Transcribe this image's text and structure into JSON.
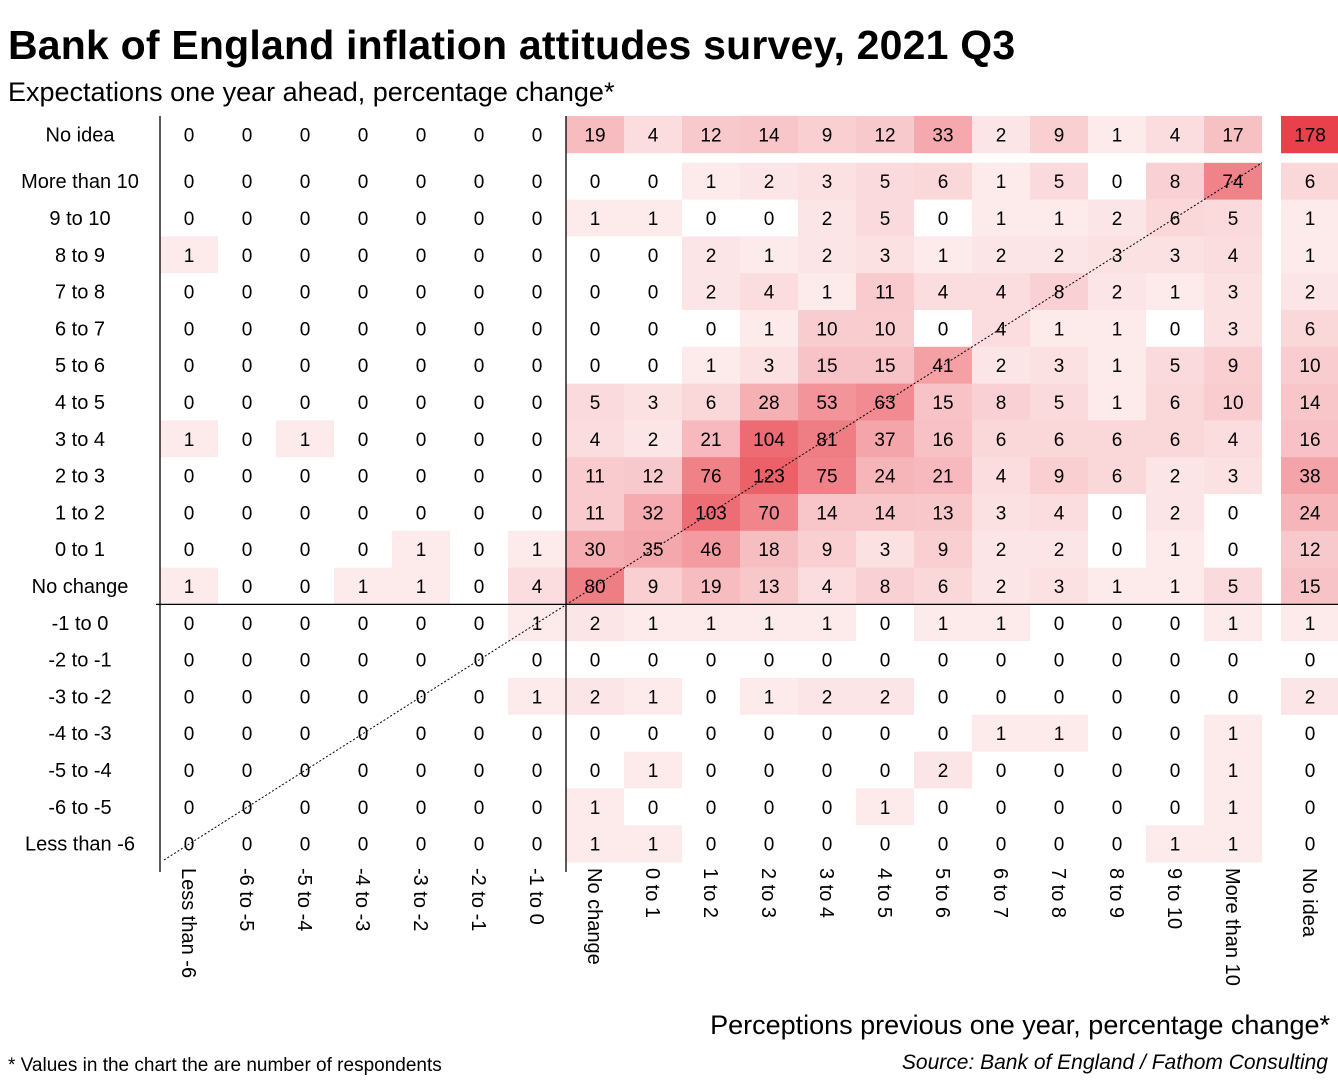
{
  "chart_data": {
    "type": "heatmap",
    "title": "Bank of England inflation attitudes survey, 2021 Q3",
    "subtitle": "Expectations one year ahead, percentage change*",
    "xlabel": "Perceptions previous one year, percentage change*",
    "footnote": "* Values in the chart the are number of respondents",
    "source": "Source: Bank of England / Fathom Consulting",
    "colors": {
      "high": "#e8414b",
      "low": "#ffffff"
    },
    "x_categories": [
      "Less than -6",
      "-6 to -5",
      "-5 to -4",
      "-4 to -3",
      "-3 to -2",
      "-2 to -1",
      "-1 to 0",
      "No change",
      "0 to 1",
      "1 to 2",
      "2 to 3",
      "3 to 4",
      "4 to 5",
      "5 to 6",
      "6 to 7",
      "7 to 8",
      "8 to 9",
      "9 to 10",
      "More than 10",
      "No idea"
    ],
    "y_categories": [
      "No idea",
      "More than 10",
      "9 to 10",
      "8 to 9",
      "7 to 8",
      "6 to 7",
      "5 to 6",
      "4 to 5",
      "3 to 4",
      "2 to 3",
      "1 to 2",
      "0 to 1",
      "No change",
      "-1 to 0",
      "-2 to -1",
      "-3 to -2",
      "-4 to -3",
      "-5 to -4",
      "-6 to -5",
      "Less than -6"
    ],
    "values": [
      [
        0,
        0,
        0,
        0,
        0,
        0,
        0,
        19,
        4,
        12,
        14,
        9,
        12,
        33,
        2,
        9,
        1,
        4,
        17,
        178
      ],
      [
        0,
        0,
        0,
        0,
        0,
        0,
        0,
        0,
        0,
        1,
        2,
        3,
        5,
        6,
        1,
        5,
        0,
        8,
        74,
        6
      ],
      [
        0,
        0,
        0,
        0,
        0,
        0,
        0,
        1,
        1,
        0,
        0,
        2,
        5,
        0,
        1,
        1,
        2,
        6,
        5,
        1
      ],
      [
        1,
        0,
        0,
        0,
        0,
        0,
        0,
        0,
        0,
        2,
        1,
        2,
        3,
        1,
        2,
        2,
        3,
        3,
        4,
        1
      ],
      [
        0,
        0,
        0,
        0,
        0,
        0,
        0,
        0,
        0,
        2,
        4,
        1,
        11,
        4,
        4,
        8,
        2,
        1,
        3,
        2
      ],
      [
        0,
        0,
        0,
        0,
        0,
        0,
        0,
        0,
        0,
        0,
        1,
        10,
        10,
        0,
        4,
        1,
        1,
        0,
        3,
        6
      ],
      [
        0,
        0,
        0,
        0,
        0,
        0,
        0,
        0,
        0,
        1,
        3,
        15,
        15,
        41,
        2,
        3,
        1,
        5,
        9,
        10
      ],
      [
        0,
        0,
        0,
        0,
        0,
        0,
        0,
        5,
        3,
        6,
        28,
        53,
        63,
        15,
        8,
        5,
        1,
        6,
        10,
        14
      ],
      [
        1,
        0,
        1,
        0,
        0,
        0,
        0,
        4,
        2,
        21,
        104,
        81,
        37,
        16,
        6,
        6,
        6,
        6,
        4,
        16
      ],
      [
        0,
        0,
        0,
        0,
        0,
        0,
        0,
        11,
        12,
        76,
        123,
        75,
        24,
        21,
        4,
        9,
        6,
        2,
        3,
        38
      ],
      [
        0,
        0,
        0,
        0,
        0,
        0,
        0,
        11,
        32,
        103,
        70,
        14,
        14,
        13,
        3,
        4,
        0,
        2,
        0,
        24
      ],
      [
        0,
        0,
        0,
        0,
        1,
        0,
        1,
        30,
        35,
        46,
        18,
        9,
        3,
        9,
        2,
        2,
        0,
        1,
        0,
        12
      ],
      [
        1,
        0,
        0,
        1,
        1,
        0,
        4,
        80,
        9,
        19,
        13,
        4,
        8,
        6,
        2,
        3,
        1,
        1,
        5,
        15
      ],
      [
        0,
        0,
        0,
        0,
        0,
        0,
        1,
        2,
        1,
        1,
        1,
        1,
        0,
        1,
        1,
        0,
        0,
        0,
        1,
        1
      ],
      [
        0,
        0,
        0,
        0,
        0,
        0,
        0,
        0,
        0,
        0,
        0,
        0,
        0,
        0,
        0,
        0,
        0,
        0,
        0,
        0
      ],
      [
        0,
        0,
        0,
        0,
        0,
        0,
        1,
        2,
        1,
        0,
        1,
        2,
        2,
        0,
        0,
        0,
        0,
        0,
        0,
        2
      ],
      [
        0,
        0,
        0,
        0,
        0,
        0,
        0,
        0,
        0,
        0,
        0,
        0,
        0,
        0,
        1,
        1,
        0,
        0,
        1,
        0
      ],
      [
        0,
        0,
        0,
        0,
        0,
        0,
        0,
        0,
        1,
        0,
        0,
        0,
        0,
        2,
        0,
        0,
        0,
        0,
        1,
        0
      ],
      [
        0,
        0,
        0,
        0,
        0,
        0,
        0,
        1,
        0,
        0,
        0,
        0,
        1,
        0,
        0,
        0,
        0,
        0,
        1,
        0
      ],
      [
        0,
        0,
        0,
        0,
        0,
        0,
        0,
        1,
        1,
        0,
        0,
        0,
        0,
        0,
        0,
        0,
        0,
        1,
        1,
        0
      ]
    ]
  }
}
